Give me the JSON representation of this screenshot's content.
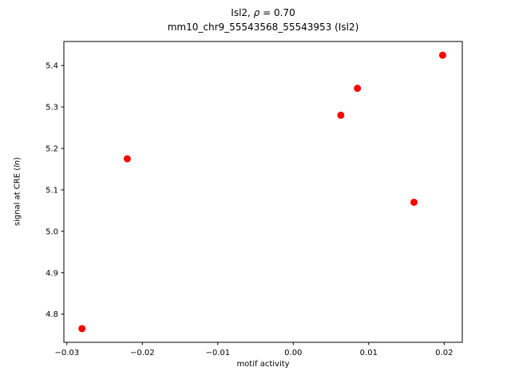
{
  "figure": {
    "title": {
      "line1_pre": "Isl2, ",
      "line1_rho": "ρ",
      "line1_post": " = 0.70",
      "line2": "mm10_chr9_55543568_55543953 (Isl2)"
    },
    "axes": {
      "xlabel": "motif activity",
      "ylabel_pre": "signal at CRE (",
      "ylabel_italic": "ln",
      "ylabel_post": ")"
    }
  },
  "chart_data": {
    "type": "scatter",
    "title": "Isl2, ρ = 0.70\nmm10_chr9_55543568_55543953 (Isl2)",
    "xlabel": "motif activity",
    "ylabel": "signal at CRE (ln)",
    "xlim": [
      -0.0304,
      0.0224
    ],
    "ylim": [
      4.732,
      5.458
    ],
    "xticks": [
      -0.03,
      -0.02,
      -0.01,
      0.0,
      0.01,
      0.02
    ],
    "xtick_labels": [
      "−0.03",
      "−0.02",
      "−0.01",
      "0.00",
      "0.01",
      "0.02"
    ],
    "yticks": [
      4.8,
      4.9,
      5.0,
      5.1,
      5.2,
      5.3,
      5.4
    ],
    "ytick_labels": [
      "4.8",
      "4.9",
      "5.0",
      "5.1",
      "5.2",
      "5.3",
      "5.4"
    ],
    "grid": false,
    "legend": null,
    "marker": "o",
    "marker_color": "#ff0000",
    "background_color": "#ffffff",
    "points": [
      {
        "x": -0.028,
        "y": 4.765
      },
      {
        "x": -0.022,
        "y": 5.175
      },
      {
        "x": 0.0063,
        "y": 5.28
      },
      {
        "x": 0.0085,
        "y": 5.345
      },
      {
        "x": 0.016,
        "y": 5.07
      },
      {
        "x": 0.0198,
        "y": 5.425
      }
    ]
  }
}
